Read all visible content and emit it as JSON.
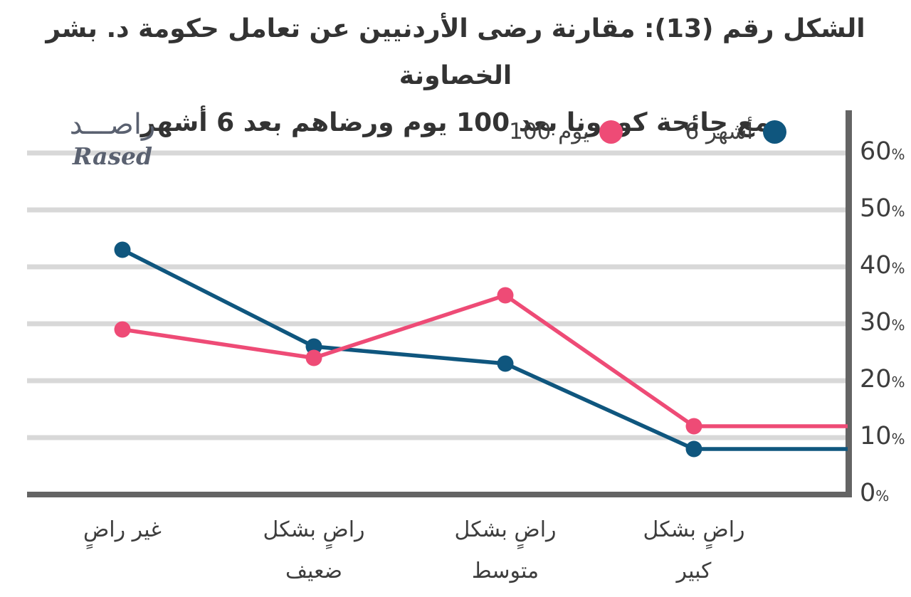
{
  "title": {
    "line1": "الشكل رقم (13): مقارنة رضى الأردنيين عن تعامل حكومة د. بشر الخصاونة",
    "line2": "مع جائحة كورونا بعد 100 يوم ورضاهم بعد 6 أشهر"
  },
  "logo": {
    "arabic": "راصـــد",
    "english": "Rased"
  },
  "chart_data": {
    "type": "line",
    "rtl": true,
    "title": "مقارنة رضى الأردنيين عن تعامل حكومة د. بشر الخصاونة مع جائحة كورونا بعد 100 يوم ورضاهم بعد 6 أشهر",
    "categories": [
      "غير راضٍ",
      "راضٍ بشكل ضعيف",
      "راضٍ بشكل متوسط",
      "راضٍ بشكل كبير"
    ],
    "categories_lines": [
      [
        "غير راضٍ"
      ],
      [
        "راضٍ بشكل",
        "ضعيف"
      ],
      [
        "راضٍ بشكل",
        "متوسط"
      ],
      [
        "راضٍ بشكل",
        "كبير"
      ]
    ],
    "series": [
      {
        "id": "100-days",
        "name": "100 يوم",
        "color": "#EE4B76",
        "values": [
          29,
          24,
          35,
          12
        ]
      },
      {
        "id": "6-months",
        "name": "6 أشهر",
        "color": "#0F567E",
        "values": [
          43,
          26,
          23,
          8
        ]
      }
    ],
    "xlabel": "",
    "ylabel": "",
    "ylim": [
      0,
      67
    ],
    "yticks": [
      0,
      10,
      20,
      30,
      40,
      50,
      60
    ],
    "ytick_suffix": "%",
    "grid": "horizontal",
    "legend_position": "top-right",
    "line_extension_to_right_axis": true,
    "palette": {
      "grid": "#D8D8D8",
      "axis": "#646464",
      "tick_text": "#3D3D3D",
      "title_text": "#333333",
      "logo_text": "#5A6170"
    }
  }
}
